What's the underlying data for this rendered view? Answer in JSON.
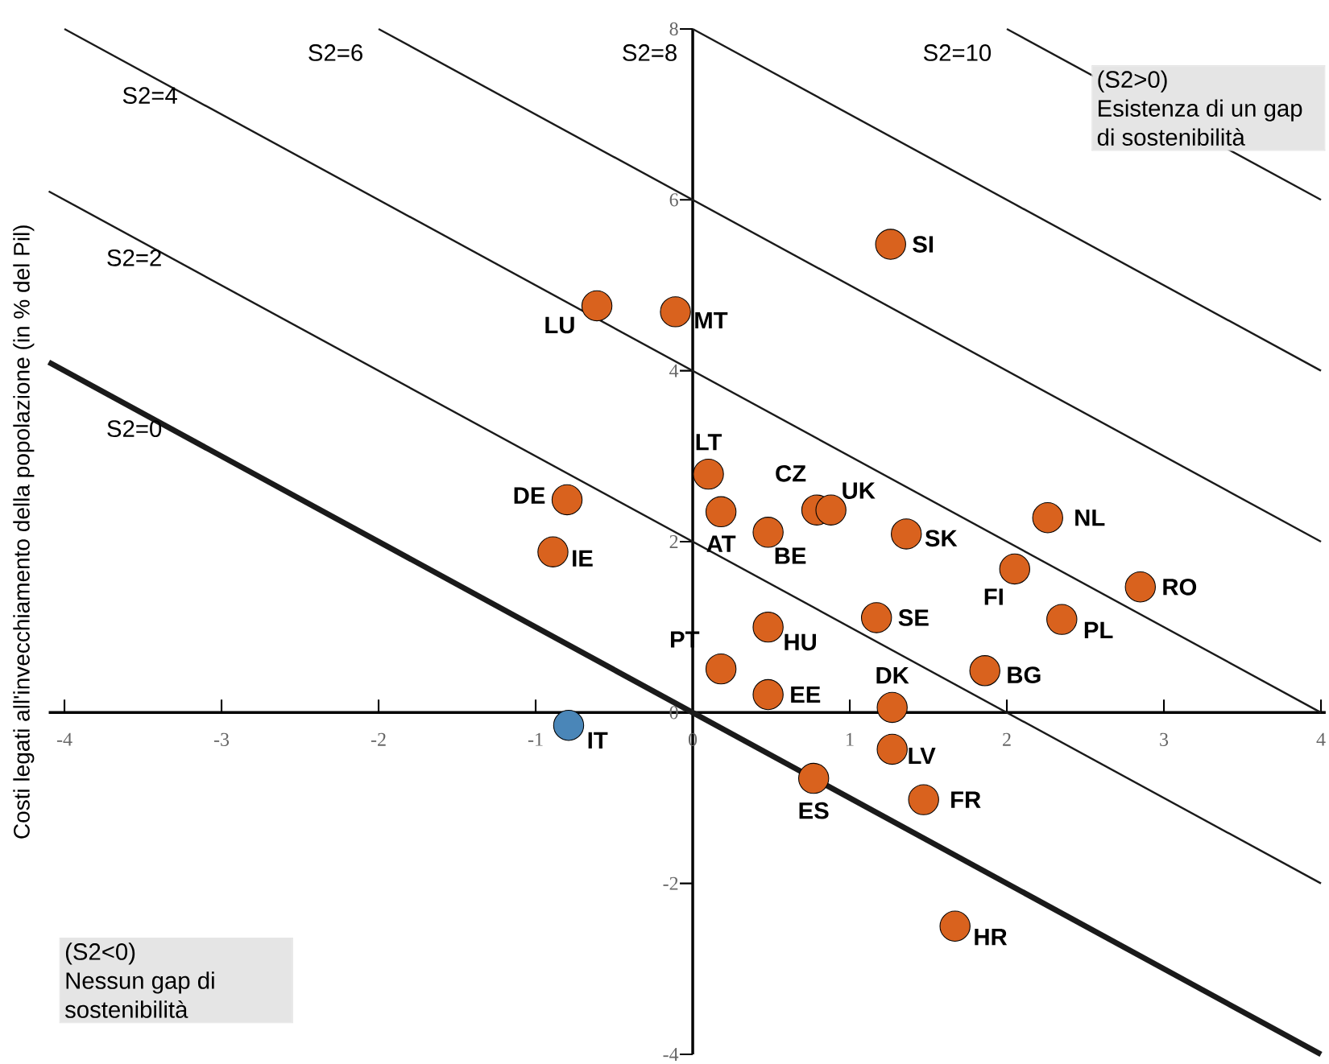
{
  "chart_data": {
    "type": "scatter",
    "ylabel": "Costi legati all'invecchiamento della popolazione (in % del Pil)",
    "xlim": [
      -4.1,
      4.03
    ],
    "ylim": [
      -4,
      8
    ],
    "xticks": [
      -4,
      -3,
      -2,
      -1,
      0,
      1,
      2,
      3,
      4
    ],
    "yticks": [
      -4,
      -2,
      0,
      2,
      4,
      6,
      8
    ],
    "series": [
      {
        "marker": "circle",
        "x": [
          1.26,
          -0.61,
          -0.11,
          0.1,
          0.79,
          0.88,
          0.18,
          0.48,
          -0.8,
          -0.89,
          1.36,
          2.26,
          2.05,
          2.85,
          2.35,
          1.17,
          0.48,
          0.18,
          0.48,
          1.86,
          1.27,
          1.27,
          0.77,
          1.47,
          1.67,
          -0.79
        ],
        "values": [
          5.48,
          4.76,
          4.69,
          2.79,
          2.37,
          2.37,
          2.35,
          2.11,
          2.49,
          1.88,
          2.09,
          2.28,
          1.68,
          1.47,
          1.09,
          1.11,
          1.0,
          0.51,
          0.21,
          0.49,
          0.06,
          -0.43,
          -0.77,
          -1.02,
          -2.5,
          -0.15
        ],
        "colors": [
          "#d9621e",
          "#d9621e",
          "#d9621e",
          "#d9621e",
          "#d9621e",
          "#d9621e",
          "#d9621e",
          "#d9621e",
          "#d9621e",
          "#d9621e",
          "#d9621e",
          "#d9621e",
          "#d9621e",
          "#d9621e",
          "#d9621e",
          "#d9621e",
          "#d9621e",
          "#d9621e",
          "#d9621e",
          "#d9621e",
          "#d9621e",
          "#d9621e",
          "#d9621e",
          "#d9621e",
          "#d9621e",
          "#4a86b8"
        ]
      },
      {
        "type": "line",
        "name": "S2=0",
        "color": "#1a1a1a",
        "x": [
          -4.1,
          4
        ],
        "values": [
          4.1,
          -4
        ]
      },
      {
        "type": "line",
        "name": "S2=2",
        "color": "#1a1a1a",
        "x": [
          -4.1,
          4
        ],
        "values": [
          6.1,
          -2
        ]
      },
      {
        "type": "line",
        "name": "S2=4",
        "color": "#1a1a1a",
        "x": [
          -4,
          4
        ],
        "values": [
          8,
          0
        ]
      },
      {
        "type": "line",
        "name": "S2=6",
        "color": "#1a1a1a",
        "x": [
          -2,
          4
        ],
        "values": [
          8,
          2
        ]
      },
      {
        "type": "line",
        "name": "S2=8",
        "color": "#1a1a1a",
        "x": [
          0,
          4
        ],
        "values": [
          8,
          4
        ]
      },
      {
        "type": "line",
        "name": "S2=10",
        "color": "#1a1a1a",
        "x": [
          2,
          4
        ],
        "values": [
          8,
          6
        ]
      }
    ],
    "annotations": [
      "(S2>0)",
      "Esistenza di un gap di sostenibilità",
      "(S2<0)",
      "Nessun gap di sostenibilità",
      {
        "text": "SI",
        "x": 1.26,
        "y": 5.48
      },
      {
        "text": "LU",
        "x": -0.61,
        "y": 4.76
      },
      {
        "text": "MT",
        "x": -0.11,
        "y": 4.69
      },
      {
        "text": "LT",
        "x": 0.1,
        "y": 2.79
      },
      {
        "text": "CZ",
        "x": 0.79,
        "y": 2.37
      },
      {
        "text": "UK",
        "x": 0.88,
        "y": 2.37
      },
      {
        "text": "AT",
        "x": 0.18,
        "y": 2.35
      },
      {
        "text": "BE",
        "x": 0.48,
        "y": 2.11
      },
      {
        "text": "DE",
        "x": -0.8,
        "y": 2.49
      },
      {
        "text": "IE",
        "x": -0.89,
        "y": 1.88
      },
      {
        "text": "SK",
        "x": 1.36,
        "y": 2.09
      },
      {
        "text": "NL",
        "x": 2.26,
        "y": 2.28
      },
      {
        "text": "FI",
        "x": 2.05,
        "y": 1.68
      },
      {
        "text": "RO",
        "x": 2.85,
        "y": 1.47
      },
      {
        "text": "PL",
        "x": 2.35,
        "y": 1.09
      },
      {
        "text": "SE",
        "x": 1.17,
        "y": 1.11
      },
      {
        "text": "HU",
        "x": 0.48,
        "y": 1.0
      },
      {
        "text": "PT",
        "x": 0.18,
        "y": 0.51
      },
      {
        "text": "EE",
        "x": 0.48,
        "y": 0.21
      },
      {
        "text": "BG",
        "x": 1.86,
        "y": 0.49
      },
      {
        "text": "DK",
        "x": 1.27,
        "y": 0.06
      },
      {
        "text": "LV",
        "x": 1.27,
        "y": -0.43
      },
      {
        "text": "ES",
        "x": 0.77,
        "y": -0.77
      },
      {
        "text": "FR",
        "x": 1.47,
        "y": -1.02
      },
      {
        "text": "HR",
        "x": 1.67,
        "y": -2.5
      },
      {
        "text": "IT",
        "x": -0.79,
        "y": -0.15
      }
    ]
  }
}
